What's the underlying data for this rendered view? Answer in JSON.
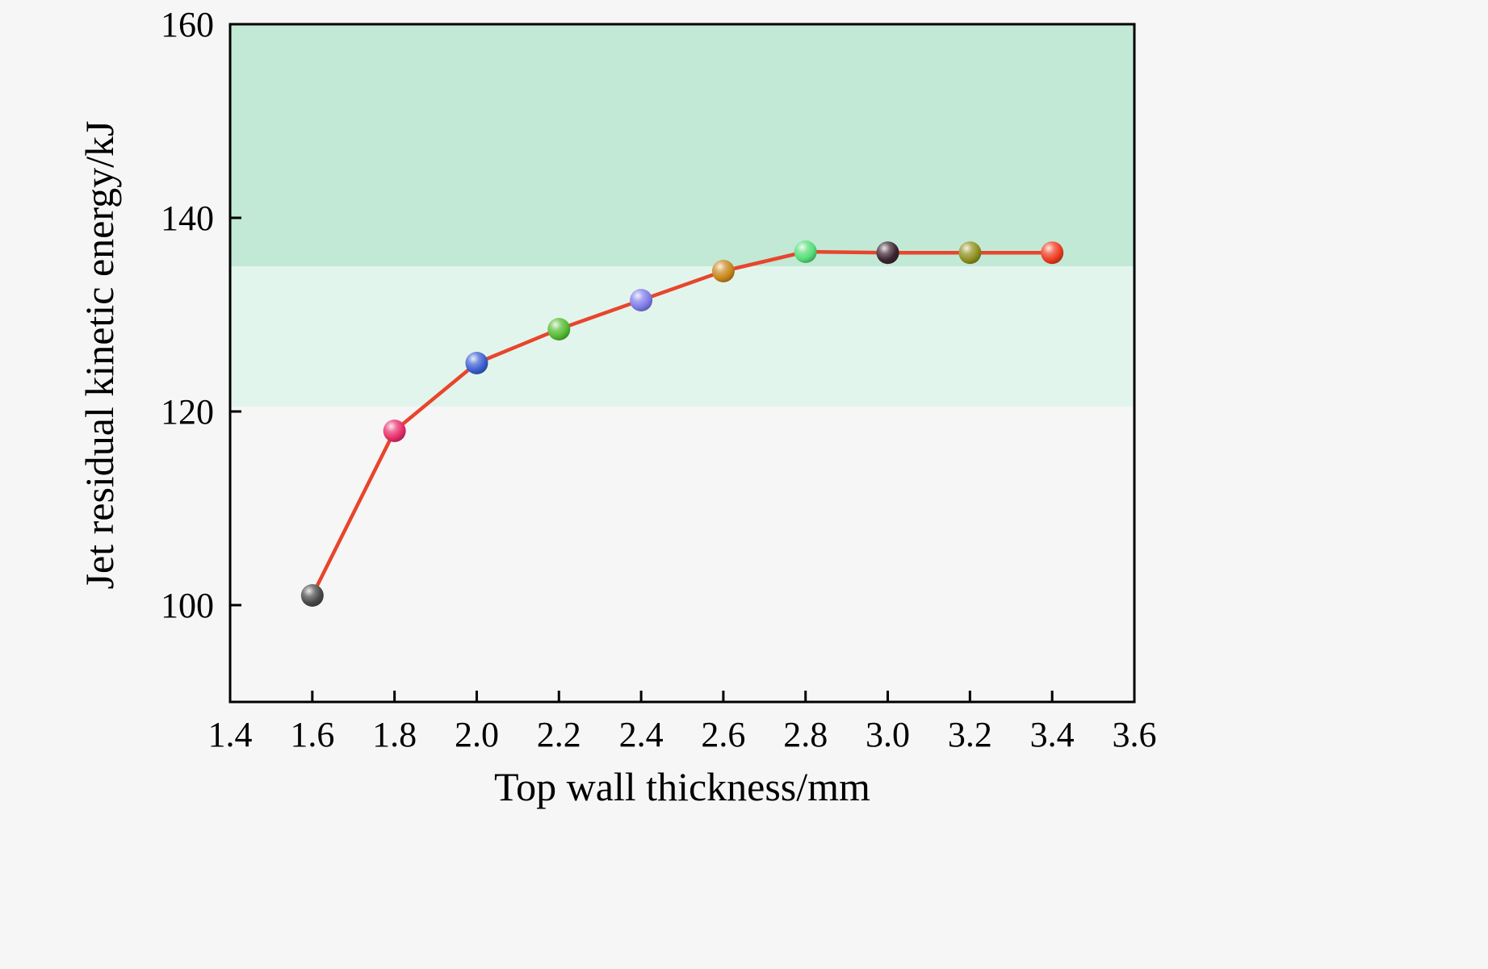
{
  "page": {
    "background": "#f6f6f6"
  },
  "chart_data": {
    "type": "line",
    "title": "",
    "xlabel": "Top wall thickness/mm",
    "ylabel": "Jet residual kinetic energy/kJ",
    "xlim": [
      1.4,
      3.6
    ],
    "ylim": [
      90,
      160
    ],
    "x_ticks": [
      1.4,
      1.6,
      1.8,
      2.0,
      2.2,
      2.4,
      2.6,
      2.8,
      3.0,
      3.2,
      3.4,
      3.6
    ],
    "x_tick_labels": [
      "1.4",
      "1.6",
      "1.8",
      "2.0",
      "2.2",
      "2.4",
      "2.6",
      "2.8",
      "3.0",
      "3.2",
      "3.4",
      "3.6"
    ],
    "y_ticks": [
      100,
      120,
      140,
      160
    ],
    "y_tick_labels": [
      "100",
      "120",
      "140",
      "160"
    ],
    "grid": false,
    "legend": false,
    "axis_color": "#000000",
    "line_color": "#e8452c",
    "bands": [
      {
        "from": 135,
        "to": 160,
        "color": "#c2e9d6"
      },
      {
        "from": 120.5,
        "to": 135,
        "color": "#e2f5ec"
      }
    ],
    "series": [
      {
        "name": "Jet residual kinetic energy",
        "x": [
          1.6,
          1.8,
          2.0,
          2.2,
          2.4,
          2.6,
          2.8,
          3.0,
          3.2,
          3.4
        ],
        "y": [
          101,
          118,
          125,
          128.5,
          131.5,
          134.5,
          136.5,
          136.4,
          136.4,
          136.4
        ],
        "marker_colors": [
          "#4a4a4a",
          "#e82d6a",
          "#3b5fd0",
          "#55bb33",
          "#7f7ce8",
          "#c8861a",
          "#55dd77",
          "#3c2430",
          "#8f8f1f",
          "#ee3b1f"
        ]
      }
    ]
  }
}
